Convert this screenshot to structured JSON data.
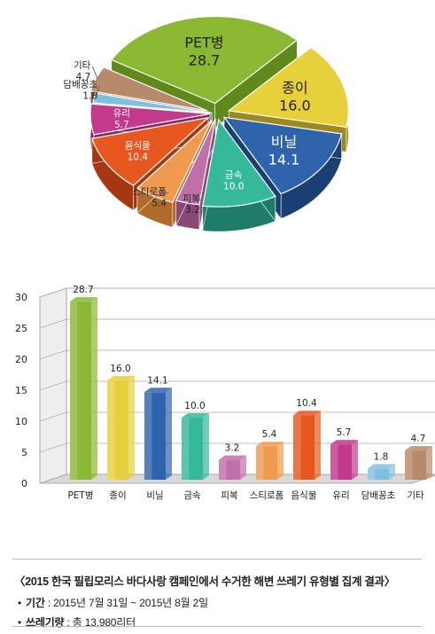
{
  "chart_data": [
    {
      "type": "pie",
      "slices": [
        {
          "label": "PET병",
          "value": 28.7,
          "color": "#8ab833",
          "side": "#5f8a1b"
        },
        {
          "label": "종이",
          "value": 16.0,
          "color": "#e8cf3c",
          "side": "#9c8a1f"
        },
        {
          "label": "비닐",
          "value": 14.1,
          "color": "#2f64ad",
          "side": "#1c3f73"
        },
        {
          "label": "금속",
          "value": 10.0,
          "color": "#36b89b",
          "side": "#1e7d69"
        },
        {
          "label": "피복",
          "value": 3.2,
          "color": "#c070a8",
          "side": "#8a4878"
        },
        {
          "label": "스티로폼",
          "value": 5.4,
          "color": "#ef9a4e",
          "side": "#b06a2a"
        },
        {
          "label": "음식물",
          "value": 10.4,
          "color": "#e65820",
          "side": "#a53810"
        },
        {
          "label": "유리",
          "value": 5.7,
          "color": "#c43a8a",
          "side": "#8a2560"
        },
        {
          "label": "담배꽁초",
          "value": 1.8,
          "color": "#7fbfe0",
          "side": "#4a8ab0"
        },
        {
          "label": "기타",
          "value": 4.7,
          "color": "#b88a6c",
          "side": "#7d5a43"
        }
      ]
    },
    {
      "type": "bar",
      "categories": [
        "PET병",
        "종이",
        "비닐",
        "금속",
        "피복",
        "스티로폼",
        "음식물",
        "유리",
        "담배꽁초",
        "기타"
      ],
      "values": [
        28.7,
        16.0,
        14.1,
        10.0,
        3.2,
        5.4,
        10.4,
        5.7,
        1.8,
        4.7
      ],
      "value_labels": [
        "28.7",
        "16.0",
        "14.1",
        "10.0",
        "3.2",
        "5.4",
        "10.4",
        "5.7",
        "1.8",
        "4.7"
      ],
      "colors": [
        "#8ab833",
        "#e8cf3c",
        "#2f64ad",
        "#36b89b",
        "#c070a8",
        "#ef9a4e",
        "#e65820",
        "#c43a8a",
        "#7fbfe0",
        "#b88a6c"
      ],
      "ylim": [
        0,
        30
      ],
      "yticks": [
        0,
        5,
        10,
        15,
        20,
        25,
        30
      ],
      "grid": true
    }
  ],
  "caption": {
    "title": "〈2015 한국 필립모리스 바다사랑 캠페인에서 수거한 해변 쓰레기 유형별 집계 결과〉",
    "items": [
      {
        "key": "기간",
        "value": " : 2015년 7월 31일 ~ 2015년 8월 2일"
      },
      {
        "key": "쓰레기량",
        "value": " : 총 13,980리터"
      }
    ]
  }
}
